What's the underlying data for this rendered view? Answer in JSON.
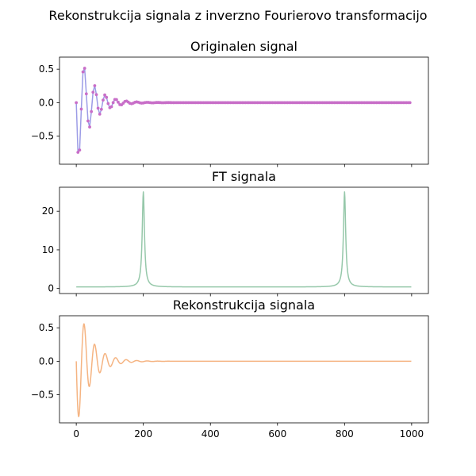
{
  "figure": {
    "suptitle": "Rekonstrukcija signala z inverzno Fourierovo transformacijo"
  },
  "colors": {
    "original_line": "#9c9ce6",
    "original_markers": "#c86ec8",
    "ft_line": "#96c8aa",
    "recon_line": "#f5b482",
    "axis": "#000000"
  },
  "chart_data": [
    {
      "type": "line",
      "title": "Originalen signal",
      "signal": {
        "kind": "damped_oscillation",
        "amplitude": 1,
        "decay": 0.025,
        "frequency": 0.2,
        "n": 1000,
        "sample_step": 5,
        "value_at_0": 0
      },
      "xlim": [
        -50,
        1050
      ],
      "ylim": [
        -0.92,
        0.68
      ],
      "xticks": [
        0,
        200,
        400,
        600,
        800,
        1000
      ],
      "yticks": [
        -0.5,
        0.0,
        0.5
      ],
      "ytick_labels": [
        "−0.5",
        "0.0",
        "0.5"
      ],
      "show_xtick_labels": false,
      "markers": true,
      "series": [
        {
          "values_peak": 0.6,
          "values_trough": -0.87
        }
      ]
    },
    {
      "type": "line",
      "title": "FT signala",
      "signal": {
        "kind": "magnitude_spectrum",
        "peak_positions": [
          200,
          800
        ],
        "peak_value": 25,
        "baseline": 0.4,
        "n": 1000
      },
      "xlim": [
        -50,
        1050
      ],
      "ylim": [
        -1.3,
        26.2
      ],
      "xticks": [
        0,
        200,
        400,
        600,
        800,
        1000
      ],
      "yticks": [
        0,
        10,
        20
      ],
      "ytick_labels": [
        "0",
        "10",
        "20"
      ],
      "show_xtick_labels": false,
      "series": [
        {
          "peaks": [
            {
              "x": 200,
              "y": 25
            },
            {
              "x": 800,
              "y": 25
            }
          ]
        }
      ]
    },
    {
      "type": "line",
      "title": "Rekonstrukcija signala",
      "signal": {
        "kind": "damped_oscillation",
        "amplitude": 1,
        "decay": 0.025,
        "frequency": 0.2,
        "n": 1000,
        "value_at_0": 0
      },
      "xlim": [
        -50,
        1050
      ],
      "ylim": [
        -0.92,
        0.68
      ],
      "xticks": [
        0,
        200,
        400,
        600,
        800,
        1000
      ],
      "xtick_labels": [
        "0",
        "200",
        "400",
        "600",
        "800",
        "1000"
      ],
      "yticks": [
        -0.5,
        0.0,
        0.5
      ],
      "ytick_labels": [
        "−0.5",
        "0.0",
        "0.5"
      ],
      "show_xtick_labels": true,
      "series": [
        {
          "values_peak": 0.6,
          "values_trough": -0.87
        }
      ]
    }
  ]
}
